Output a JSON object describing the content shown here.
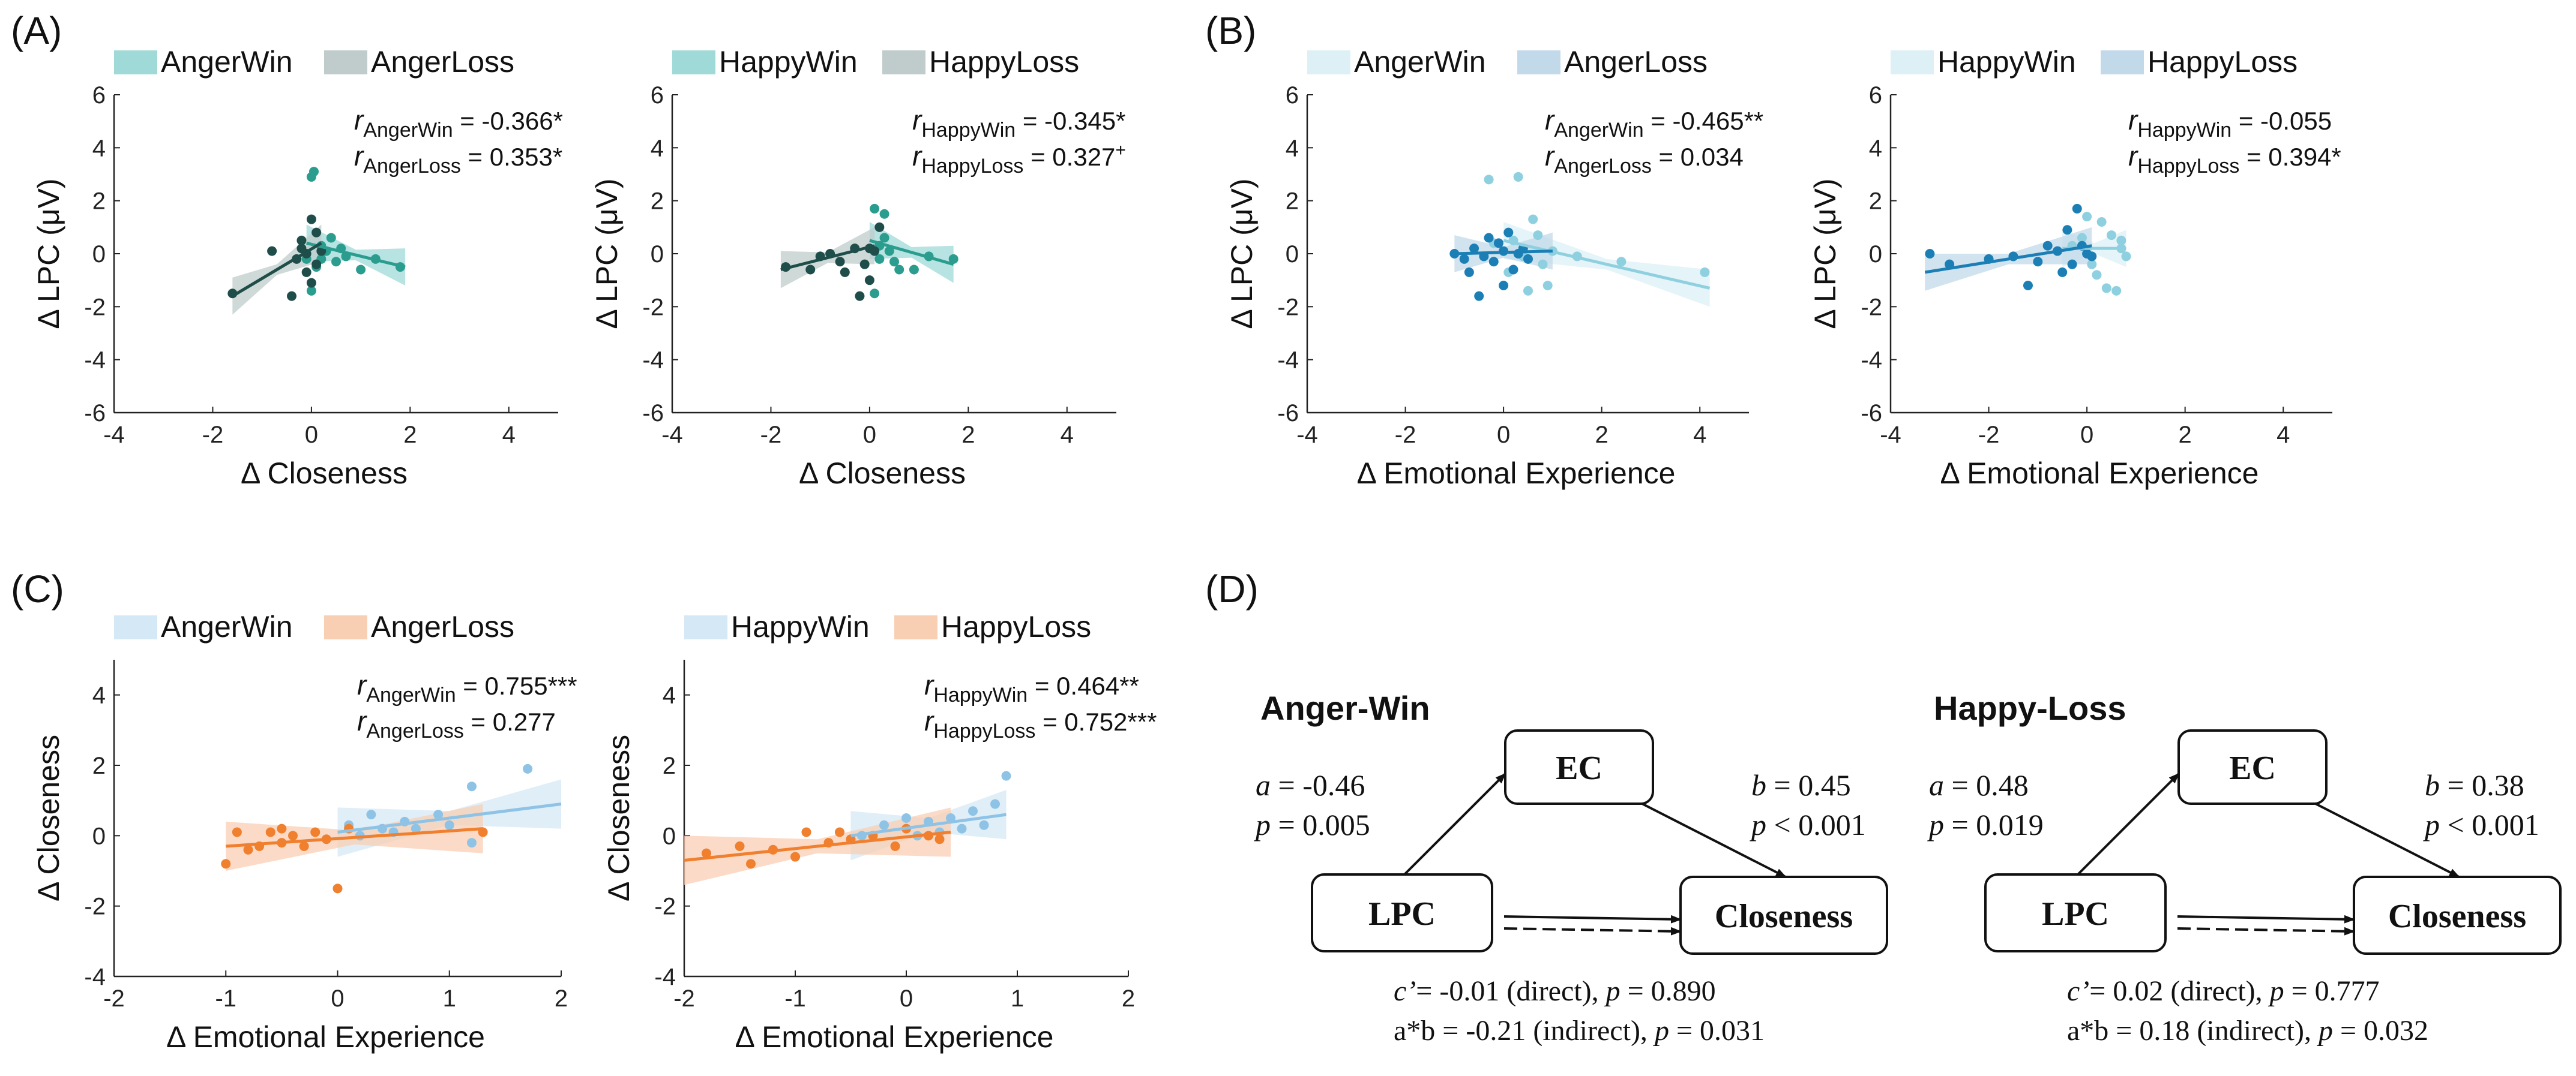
{
  "panel_labels": {
    "A": "(A)",
    "B": "(B)",
    "C": "(C)",
    "D": "(D)"
  },
  "colors": {
    "anger_win": "#2a9d8f",
    "anger_win_light": "#9fdad8",
    "anger_loss": "#1f4e4a",
    "anger_loss_light": "#bfcccb",
    "happy_win": "#2a9d8f",
    "happy_loss": "#1f4e4a",
    "b_win": "#8fd0e0",
    "b_win_light": "#dcf0f6",
    "b_loss": "#1b7fb5",
    "b_loss_light": "#c2d9ea",
    "c_win": "#8ec3e6",
    "c_win_light": "#d5e8f5",
    "c_loss": "#f07f2e",
    "c_loss_light": "#f9cfb4"
  },
  "chart_data": [
    {
      "id": "A1",
      "type": "scatter",
      "legend": [
        "AngerWin",
        "AngerLoss"
      ],
      "xlabel": "Δ Closeness",
      "ylabel": "Δ LPC (μV)",
      "xlim": [
        -4,
        5
      ],
      "ylim": [
        -6,
        6
      ],
      "xticks": [
        "-4",
        "-2",
        "0",
        "2",
        "4"
      ],
      "yticks": [
        "6",
        "4",
        "2",
        "0",
        "-2",
        "-4",
        "-6"
      ],
      "annotations": [
        {
          "r": "r",
          "sub": "AngerWin",
          "val": " = -0.366*"
        },
        {
          "r": "r",
          "sub": "AngerLoss",
          "val": " = 0.353*"
        }
      ],
      "series": [
        {
          "name": "AngerWin",
          "fit": [
            [
              -0.1,
              0.4
            ],
            [
              1.9,
              -0.5
            ]
          ],
          "points": [
            [
              0.0,
              2.9
            ],
            [
              0.05,
              3.1
            ],
            [
              0.2,
              0.3
            ],
            [
              0.3,
              0.1
            ],
            [
              0.5,
              -0.3
            ],
            [
              0.7,
              -0.1
            ],
            [
              1.0,
              -0.6
            ],
            [
              1.3,
              -0.2
            ],
            [
              1.8,
              -0.5
            ],
            [
              0.1,
              -0.5
            ],
            [
              -0.1,
              -0.2
            ],
            [
              0.0,
              -1.4
            ],
            [
              0.4,
              0.6
            ],
            [
              0.2,
              -0.2
            ],
            [
              0.6,
              0.2
            ]
          ]
        },
        {
          "name": "AngerLoss",
          "fit": [
            [
              -1.6,
              -1.6
            ],
            [
              0.2,
              0.4
            ]
          ],
          "points": [
            [
              -1.6,
              -1.5
            ],
            [
              -0.8,
              0.1
            ],
            [
              -0.3,
              -0.2
            ],
            [
              -0.2,
              0.2
            ],
            [
              -0.1,
              -0.7
            ],
            [
              0.0,
              -1.1
            ],
            [
              -0.4,
              -1.6
            ],
            [
              0.1,
              0.8
            ],
            [
              0.0,
              1.3
            ],
            [
              -0.2,
              0.5
            ],
            [
              0.1,
              -0.4
            ],
            [
              -0.1,
              0.0
            ],
            [
              0.2,
              0.1
            ]
          ]
        }
      ]
    },
    {
      "id": "A2",
      "type": "scatter",
      "legend": [
        "HappyWin",
        "HappyLoss"
      ],
      "xlabel": "Δ Closeness",
      "ylabel": "Δ LPC (μV)",
      "xlim": [
        -4,
        5
      ],
      "ylim": [
        -6,
        6
      ],
      "xticks": [
        "-4",
        "-2",
        "0",
        "2",
        "4"
      ],
      "yticks": [
        "6",
        "4",
        "2",
        "0",
        "-2",
        "-4",
        "-6"
      ],
      "annotations": [
        {
          "r": "r",
          "sub": "HappyWin",
          "val": " = -0.345*"
        },
        {
          "r": "r",
          "sub": "HappyLoss",
          "val": " = 0.327",
          "sup": "+"
        }
      ],
      "series": [
        {
          "name": "HappyWin",
          "fit": [
            [
              0.0,
              0.5
            ],
            [
              1.7,
              -0.4
            ]
          ],
          "points": [
            [
              0.1,
              1.7
            ],
            [
              0.3,
              1.5
            ],
            [
              0.2,
              0.3
            ],
            [
              0.4,
              0.1
            ],
            [
              0.6,
              -0.6
            ],
            [
              0.9,
              -0.6
            ],
            [
              1.7,
              -0.2
            ],
            [
              1.2,
              -0.1
            ],
            [
              0.5,
              -0.3
            ],
            [
              0.3,
              0.6
            ],
            [
              0.1,
              -1.5
            ],
            [
              0.2,
              -0.2
            ]
          ]
        },
        {
          "name": "HappyLoss",
          "fit": [
            [
              -1.8,
              -0.6
            ],
            [
              0.1,
              0.3
            ]
          ],
          "points": [
            [
              -1.7,
              -0.5
            ],
            [
              -1.0,
              -0.1
            ],
            [
              -0.8,
              0.0
            ],
            [
              -0.6,
              -0.3
            ],
            [
              -0.5,
              -0.7
            ],
            [
              -0.3,
              0.2
            ],
            [
              -0.2,
              -1.6
            ],
            [
              0.0,
              0.2
            ],
            [
              0.1,
              0.1
            ],
            [
              -0.1,
              -0.4
            ],
            [
              0.0,
              -1.0
            ],
            [
              0.2,
              1.0
            ],
            [
              -1.2,
              -0.6
            ]
          ]
        }
      ]
    },
    {
      "id": "B1",
      "type": "scatter",
      "legend": [
        "AngerWin",
        "AngerLoss"
      ],
      "xlabel": "Δ Emotional Experience",
      "ylabel": "Δ LPC (μV)",
      "xlim": [
        -4,
        5
      ],
      "ylim": [
        -6,
        6
      ],
      "xticks": [
        "-4",
        "-2",
        "0",
        "2",
        "4"
      ],
      "yticks": [
        "6",
        "4",
        "2",
        "0",
        "-2",
        "-4",
        "-6"
      ],
      "annotations": [
        {
          "r": "r",
          "sub": "AngerWin",
          "val": " = -0.465**"
        },
        {
          "r": "r",
          "sub": "AngerLoss",
          "val": " = 0.034"
        }
      ],
      "series": [
        {
          "name": "AngerWin",
          "fit": [
            [
              0.0,
              0.5
            ],
            [
              4.2,
              -1.3
            ]
          ],
          "points": [
            [
              0.3,
              2.9
            ],
            [
              -0.3,
              2.8
            ],
            [
              0.6,
              1.3
            ],
            [
              0.7,
              0.7
            ],
            [
              1.0,
              0.1
            ],
            [
              1.5,
              -0.1
            ],
            [
              2.4,
              -0.3
            ],
            [
              4.1,
              -0.7
            ],
            [
              0.5,
              -1.4
            ],
            [
              0.9,
              -1.2
            ],
            [
              0.2,
              0.5
            ],
            [
              0.4,
              -0.1
            ],
            [
              -0.2,
              0.4
            ],
            [
              0.1,
              -0.7
            ],
            [
              0.8,
              -0.4
            ]
          ]
        },
        {
          "name": "AngerLoss",
          "fit": [
            [
              -1.0,
              0.0
            ],
            [
              1.0,
              0.1
            ]
          ],
          "points": [
            [
              -1.0,
              0.0
            ],
            [
              -0.8,
              -0.2
            ],
            [
              -0.7,
              -0.7
            ],
            [
              -0.5,
              -1.6
            ],
            [
              -0.3,
              0.6
            ],
            [
              -0.2,
              -0.3
            ],
            [
              0.0,
              0.1
            ],
            [
              0.1,
              0.8
            ],
            [
              0.2,
              -0.6
            ],
            [
              -0.4,
              -0.1
            ],
            [
              0.3,
              0.0
            ],
            [
              -0.6,
              0.2
            ],
            [
              0.0,
              -1.2
            ],
            [
              -0.1,
              0.4
            ],
            [
              0.5,
              -0.2
            ],
            [
              0.4,
              0.2
            ]
          ]
        }
      ]
    },
    {
      "id": "B2",
      "type": "scatter",
      "legend": [
        "HappyWin",
        "HappyLoss"
      ],
      "xlabel": "Δ Emotional Experience",
      "ylabel": "Δ LPC (μV)",
      "xlim": [
        -4,
        5
      ],
      "ylim": [
        -6,
        6
      ],
      "xticks": [
        "-4",
        "-2",
        "0",
        "2",
        "4"
      ],
      "yticks": [
        "6",
        "4",
        "2",
        "0",
        "-2",
        "-4",
        "-6"
      ],
      "annotations": [
        {
          "r": "r",
          "sub": "HappyWin",
          "val": " = -0.055"
        },
        {
          "r": "r",
          "sub": "HappyLoss",
          "val": " = 0.394*"
        }
      ],
      "series": [
        {
          "name": "HappyWin",
          "fit": [
            [
              -0.5,
              0.2
            ],
            [
              0.8,
              0.2
            ]
          ],
          "points": [
            [
              0.0,
              1.4
            ],
            [
              0.3,
              1.2
            ],
            [
              0.5,
              0.7
            ],
            [
              0.7,
              0.2
            ],
            [
              0.8,
              -0.1
            ],
            [
              0.6,
              -1.4
            ],
            [
              0.4,
              -1.3
            ],
            [
              0.1,
              -0.4
            ],
            [
              -0.1,
              0.6
            ],
            [
              0.2,
              -0.8
            ],
            [
              0.7,
              0.5
            ],
            [
              -0.3,
              0.3
            ]
          ]
        },
        {
          "name": "HappyLoss",
          "fit": [
            [
              -3.3,
              -0.7
            ],
            [
              0.1,
              0.3
            ]
          ],
          "points": [
            [
              -3.2,
              0.0
            ],
            [
              -2.8,
              -0.4
            ],
            [
              -2.0,
              -0.2
            ],
            [
              -1.5,
              -0.1
            ],
            [
              -1.0,
              -0.3
            ],
            [
              -0.8,
              0.3
            ],
            [
              -0.6,
              0.1
            ],
            [
              -0.4,
              0.9
            ],
            [
              -0.3,
              -0.4
            ],
            [
              -0.2,
              1.7
            ],
            [
              0.0,
              0.0
            ],
            [
              -1.2,
              -1.2
            ],
            [
              -0.5,
              -0.7
            ],
            [
              -0.1,
              0.3
            ],
            [
              0.1,
              -0.1
            ]
          ]
        }
      ]
    },
    {
      "id": "C1",
      "type": "scatter",
      "legend": [
        "AngerWin",
        "AngerLoss"
      ],
      "xlabel": "Δ Emotional Experience",
      "ylabel": "Δ Closeness",
      "xlim": [
        -2,
        2
      ],
      "ylim": [
        -4,
        5
      ],
      "xticks": [
        "-2",
        "-1",
        "0",
        "1",
        "2"
      ],
      "yticks": [
        "4",
        "2",
        "0",
        "-2",
        "-4"
      ],
      "annotations": [
        {
          "r": "r",
          "sub": "AngerWin",
          "val": " = 0.755***"
        },
        {
          "r": "r",
          "sub": "AngerLoss",
          "val": " = 0.277"
        }
      ],
      "series": [
        {
          "name": "AngerWin",
          "fit": [
            [
              0.0,
              0.1
            ],
            [
              2.0,
              0.9
            ]
          ],
          "points": [
            [
              1.7,
              1.9
            ],
            [
              1.2,
              1.4
            ],
            [
              0.9,
              0.6
            ],
            [
              0.6,
              0.4
            ],
            [
              0.4,
              0.2
            ],
            [
              0.3,
              0.6
            ],
            [
              0.1,
              0.3
            ],
            [
              0.5,
              0.1
            ],
            [
              1.2,
              -0.2
            ],
            [
              0.2,
              0.0
            ],
            [
              0.7,
              0.2
            ],
            [
              1.0,
              0.3
            ]
          ]
        },
        {
          "name": "AngerLoss",
          "fit": [
            [
              -1.0,
              -0.3
            ],
            [
              1.3,
              0.2
            ]
          ],
          "points": [
            [
              -1.0,
              -0.8
            ],
            [
              -0.9,
              0.1
            ],
            [
              -0.7,
              -0.3
            ],
            [
              -0.6,
              0.1
            ],
            [
              -0.5,
              -0.2
            ],
            [
              -0.4,
              0.0
            ],
            [
              -0.3,
              -0.3
            ],
            [
              -0.2,
              0.1
            ],
            [
              0.0,
              -1.5
            ],
            [
              0.1,
              0.2
            ],
            [
              -0.8,
              -0.4
            ],
            [
              -0.5,
              0.2
            ],
            [
              -0.1,
              -0.1
            ],
            [
              1.3,
              0.1
            ]
          ]
        }
      ]
    },
    {
      "id": "C2",
      "type": "scatter",
      "legend": [
        "HappyWin",
        "HappyLoss"
      ],
      "xlabel": "Δ Emotional Experience",
      "ylabel": "Δ Closeness",
      "xlim": [
        -2,
        2
      ],
      "ylim": [
        -4,
        5
      ],
      "xticks": [
        "-2",
        "-1",
        "0",
        "1",
        "2"
      ],
      "yticks": [
        "4",
        "2",
        "0",
        "-2",
        "-4"
      ],
      "annotations": [
        {
          "r": "r",
          "sub": "HappyWin",
          "val": " = 0.464**"
        },
        {
          "r": "r",
          "sub": "HappyLoss",
          "val": " = 0.752***"
        }
      ],
      "series": [
        {
          "name": "HappyWin",
          "fit": [
            [
              -0.5,
              0.0
            ],
            [
              0.9,
              0.6
            ]
          ],
          "points": [
            [
              0.9,
              1.7
            ],
            [
              0.8,
              0.9
            ],
            [
              0.6,
              0.7
            ],
            [
              0.4,
              0.5
            ],
            [
              0.2,
              0.4
            ],
            [
              0.0,
              0.5
            ],
            [
              -0.2,
              0.3
            ],
            [
              -0.4,
              0.0
            ],
            [
              0.3,
              0.1
            ],
            [
              0.5,
              0.2
            ],
            [
              0.1,
              0.0
            ],
            [
              0.7,
              0.3
            ]
          ]
        },
        {
          "name": "HappyLoss",
          "fit": [
            [
              -2.0,
              -0.7
            ],
            [
              0.4,
              0.1
            ]
          ],
          "points": [
            [
              -1.8,
              -0.5
            ],
            [
              -1.5,
              -0.3
            ],
            [
              -1.4,
              -0.8
            ],
            [
              -1.2,
              -0.4
            ],
            [
              -1.0,
              -0.6
            ],
            [
              -0.9,
              0.1
            ],
            [
              -0.7,
              -0.2
            ],
            [
              -0.5,
              -0.1
            ],
            [
              -0.3,
              0.0
            ],
            [
              -0.1,
              -0.3
            ],
            [
              0.0,
              0.2
            ],
            [
              0.2,
              0.0
            ],
            [
              -0.6,
              0.1
            ],
            [
              0.3,
              -0.1
            ]
          ]
        }
      ]
    }
  ],
  "mediation": [
    {
      "title": "Anger-Win",
      "ec": "EC",
      "lpc": "LPC",
      "closeness": "Closeness",
      "a_label": "a",
      "a_val": " = -0.46",
      "a_p_label": "p",
      "a_p_val": " = 0.005",
      "b_label": "b",
      "b_val": " = 0.45",
      "b_p_label": "p",
      "b_p_val": " < 0.001",
      "c_label": "c’",
      "c_val": "= -0.01 (direct), ",
      "c_p_label": "p",
      "c_p_val": " = 0.890",
      "ab_text": "a*b = -0.21 (indirect), ",
      "ab_p_label": "p",
      "ab_p_val": " = 0.031"
    },
    {
      "title": "Happy-Loss",
      "ec": "EC",
      "lpc": "LPC",
      "closeness": "Closeness",
      "a_label": "a",
      "a_val": " = 0.48",
      "a_p_label": "p",
      "a_p_val": " = 0.019",
      "b_label": "b",
      "b_val": " = 0.38",
      "b_p_label": "p",
      "b_p_val": " < 0.001",
      "c_label": "c’",
      "c_val": "= 0.02 (direct), ",
      "c_p_label": "p",
      "c_p_val": " = 0.777",
      "ab_text": "a*b = 0.18 (indirect), ",
      "ab_p_label": "p",
      "ab_p_val": " = 0.032"
    }
  ]
}
